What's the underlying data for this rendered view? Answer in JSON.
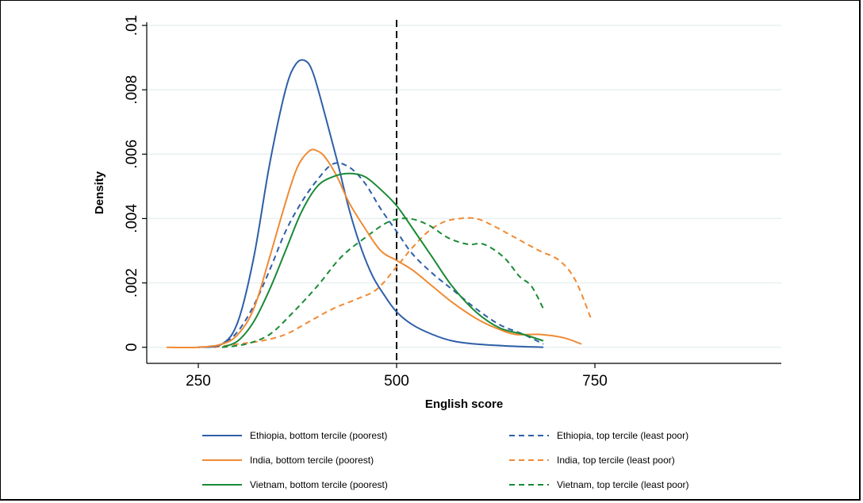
{
  "chart_data": {
    "type": "line",
    "xlabel": "English score",
    "ylabel": "Density",
    "xlim": [
      185,
      985
    ],
    "ylim": [
      -0.0005,
      0.0101
    ],
    "x_ticks": [
      250,
      500,
      750
    ],
    "x_tick_labels": [
      "250",
      "500",
      "750"
    ],
    "y_ticks": [
      0,
      0.002,
      0.004,
      0.006,
      0.008,
      0.01
    ],
    "y_tick_labels": [
      "0",
      ".002",
      ".004",
      ".006",
      ".008",
      ".01"
    ],
    "grid": "horizontal",
    "reference_line": {
      "x": 500,
      "style": "dashed",
      "color": "#000000"
    },
    "legend_position": "bottom",
    "series": [
      {
        "name": "Ethiopia, bottom tercile (poorest)",
        "color": "#2e5fa8",
        "dash": "solid",
        "points": [
          [
            250,
            0
          ],
          [
            280,
            0.0001
          ],
          [
            300,
            0.0008
          ],
          [
            320,
            0.0028
          ],
          [
            340,
            0.0057
          ],
          [
            360,
            0.008
          ],
          [
            373,
            0.0088
          ],
          [
            385,
            0.0089
          ],
          [
            395,
            0.0085
          ],
          [
            410,
            0.0072
          ],
          [
            425,
            0.0058
          ],
          [
            440,
            0.0043
          ],
          [
            455,
            0.0031
          ],
          [
            470,
            0.0022
          ],
          [
            485,
            0.0016
          ],
          [
            500,
            0.0011
          ],
          [
            520,
            0.0007
          ],
          [
            545,
            0.0004
          ],
          [
            570,
            0.0002
          ],
          [
            600,
            0.0001
          ],
          [
            640,
            4e-05
          ],
          [
            685,
            0
          ]
        ]
      },
      {
        "name": "Ethiopia, top tercile (least poor)",
        "color": "#2e5fa8",
        "dash": "dashed",
        "points": [
          [
            250,
            0
          ],
          [
            280,
            0.0001
          ],
          [
            300,
            0.0005
          ],
          [
            320,
            0.0013
          ],
          [
            340,
            0.0024
          ],
          [
            360,
            0.0036
          ],
          [
            380,
            0.0045
          ],
          [
            400,
            0.0052
          ],
          [
            420,
            0.0057
          ],
          [
            440,
            0.0056
          ],
          [
            460,
            0.0051
          ],
          [
            480,
            0.0043
          ],
          [
            500,
            0.0036
          ],
          [
            520,
            0.0029
          ],
          [
            545,
            0.0023
          ],
          [
            570,
            0.0018
          ],
          [
            600,
            0.0012
          ],
          [
            630,
            0.0007
          ],
          [
            660,
            0.0004
          ],
          [
            685,
            0.0001
          ]
        ]
      },
      {
        "name": "India, bottom tercile (poorest)",
        "color": "#f08a33",
        "dash": "solid",
        "points": [
          [
            210,
            0
          ],
          [
            250,
            0
          ],
          [
            280,
            0.0001
          ],
          [
            300,
            0.0004
          ],
          [
            320,
            0.0012
          ],
          [
            340,
            0.0028
          ],
          [
            360,
            0.0045
          ],
          [
            375,
            0.0056
          ],
          [
            390,
            0.0061
          ],
          [
            400,
            0.0061
          ],
          [
            410,
            0.0059
          ],
          [
            425,
            0.0053
          ],
          [
            440,
            0.0045
          ],
          [
            460,
            0.0037
          ],
          [
            480,
            0.003
          ],
          [
            500,
            0.0027
          ],
          [
            520,
            0.0024
          ],
          [
            545,
            0.0019
          ],
          [
            570,
            0.0014
          ],
          [
            600,
            0.0009
          ],
          [
            625,
            0.0006
          ],
          [
            650,
            0.0004
          ],
          [
            680,
            0.0004
          ],
          [
            710,
            0.0003
          ],
          [
            733,
            0.0001
          ]
        ]
      },
      {
        "name": "India, top tercile (least poor)",
        "color": "#f08a33",
        "dash": "dashed",
        "points": [
          [
            270,
            0
          ],
          [
            300,
            0.0001
          ],
          [
            330,
            0.0002
          ],
          [
            360,
            0.0004
          ],
          [
            390,
            0.0008
          ],
          [
            420,
            0.0012
          ],
          [
            450,
            0.0015
          ],
          [
            475,
            0.0018
          ],
          [
            500,
            0.0025
          ],
          [
            520,
            0.0031
          ],
          [
            540,
            0.0036
          ],
          [
            560,
            0.0039
          ],
          [
            580,
            0.004
          ],
          [
            600,
            0.004
          ],
          [
            620,
            0.0038
          ],
          [
            650,
            0.0034
          ],
          [
            680,
            0.003
          ],
          [
            705,
            0.0027
          ],
          [
            725,
            0.0021
          ],
          [
            745,
            0.0009
          ]
        ]
      },
      {
        "name": "Vietnam, bottom tercile (poorest)",
        "color": "#1a8a36",
        "dash": "solid",
        "points": [
          [
            280,
            0
          ],
          [
            300,
            0.0002
          ],
          [
            320,
            0.0008
          ],
          [
            340,
            0.0018
          ],
          [
            360,
            0.003
          ],
          [
            380,
            0.0042
          ],
          [
            400,
            0.005
          ],
          [
            420,
            0.0053
          ],
          [
            440,
            0.0054
          ],
          [
            460,
            0.0053
          ],
          [
            480,
            0.0049
          ],
          [
            500,
            0.0044
          ],
          [
            520,
            0.0037
          ],
          [
            545,
            0.0028
          ],
          [
            570,
            0.0019
          ],
          [
            600,
            0.0011
          ],
          [
            630,
            0.0006
          ],
          [
            660,
            0.0004
          ],
          [
            685,
            0.0002
          ]
        ]
      },
      {
        "name": "Vietnam, top tercile (least poor)",
        "color": "#1a8a36",
        "dash": "dashed",
        "points": [
          [
            280,
            0
          ],
          [
            310,
            0.0001
          ],
          [
            340,
            0.0004
          ],
          [
            370,
            0.0011
          ],
          [
            400,
            0.0019
          ],
          [
            430,
            0.0028
          ],
          [
            460,
            0.0034
          ],
          [
            490,
            0.0039
          ],
          [
            515,
            0.004
          ],
          [
            540,
            0.0038
          ],
          [
            565,
            0.0034
          ],
          [
            590,
            0.0032
          ],
          [
            610,
            0.0032
          ],
          [
            635,
            0.0028
          ],
          [
            655,
            0.0022
          ],
          [
            670,
            0.0019
          ],
          [
            685,
            0.0012
          ]
        ]
      }
    ]
  }
}
